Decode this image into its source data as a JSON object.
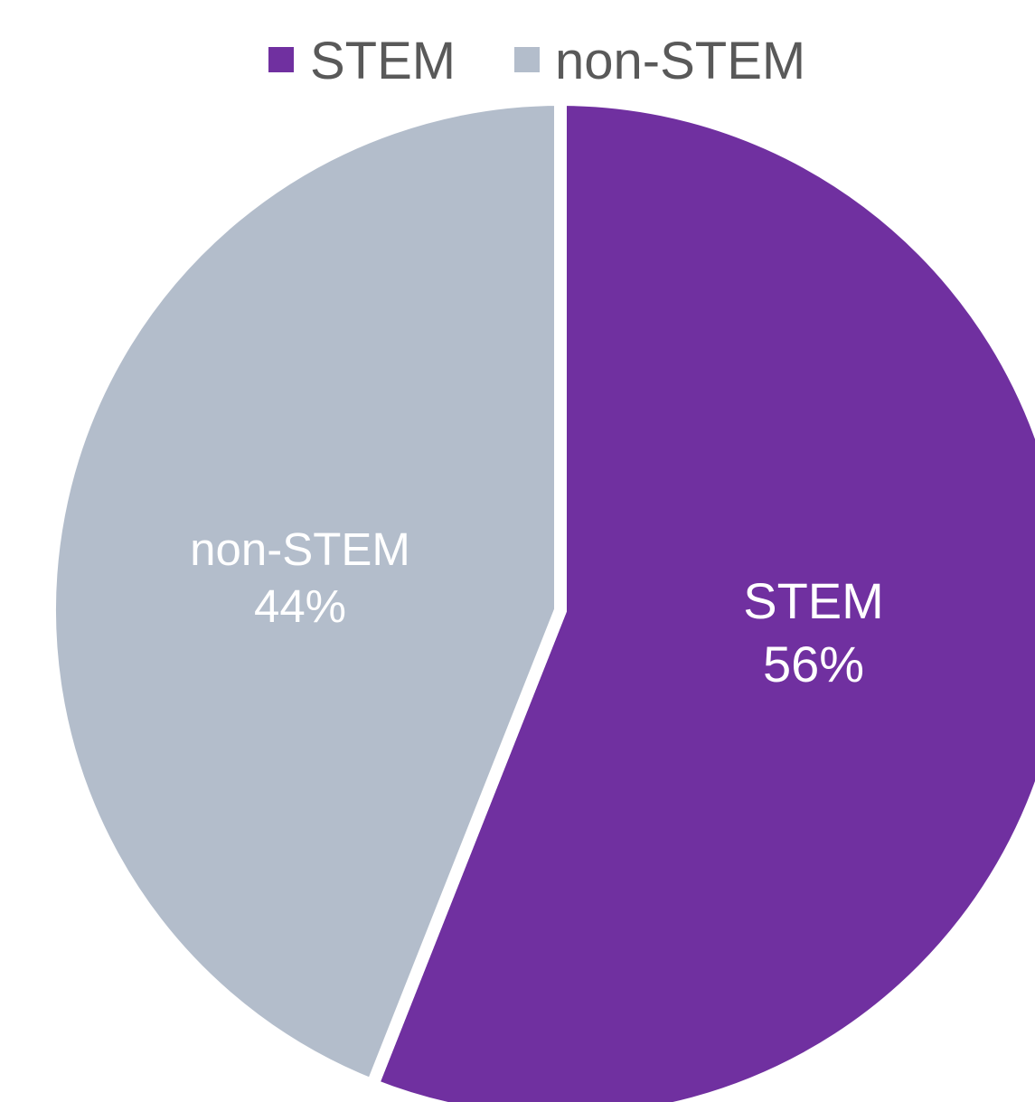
{
  "chart_data": {
    "type": "pie",
    "categories": [
      "STEM",
      "non-STEM"
    ],
    "values": [
      56,
      44
    ],
    "labels": [
      "56%",
      "44%"
    ],
    "colors": [
      "#7030A0",
      "#B3BDCB"
    ],
    "legend_position": "top",
    "start_angle": "12 o'clock",
    "direction": "clockwise"
  }
}
